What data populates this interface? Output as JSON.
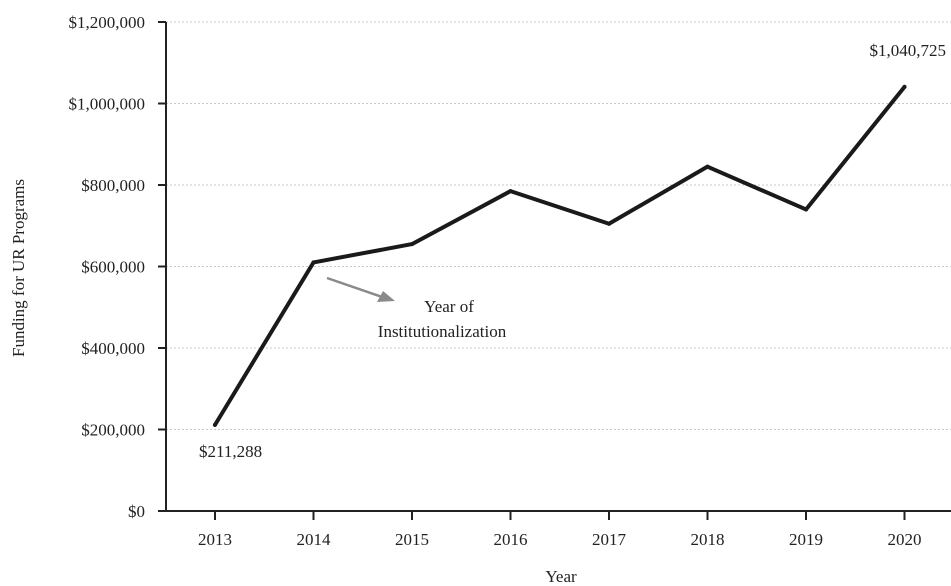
{
  "chart_data": {
    "type": "line",
    "x": [
      "2013",
      "2014",
      "2015",
      "2016",
      "2017",
      "2018",
      "2019",
      "2020"
    ],
    "series": [
      {
        "values": [
          211288,
          610000,
          655000,
          785000,
          705000,
          845000,
          740000,
          1040725
        ]
      }
    ],
    "xlabel": "Year",
    "ylabel": "Funding for UR Programs",
    "ylim": [
      0,
      1200000
    ],
    "yticks": [
      "$0",
      "$200,000",
      "$400,000",
      "$600,000",
      "$800,000",
      "$1,000,000",
      "$1,200,000"
    ],
    "grid": true,
    "annotations": {
      "start_value": "$211,288",
      "end_value": "$1,040,725",
      "institutionalization_line1": "Year of",
      "institutionalization_line2": "Institutionalization"
    },
    "colors": {
      "line": "#1a1a1a",
      "arrow": "#8a8a8a",
      "grid": "#c8c8c8",
      "axis": "#222222"
    }
  }
}
